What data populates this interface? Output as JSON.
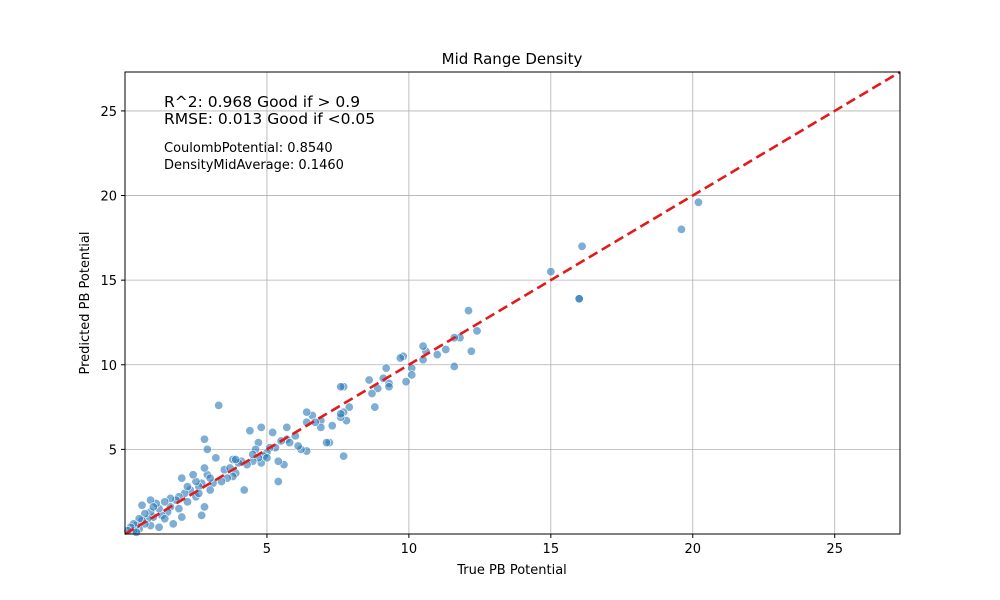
{
  "chart_data": {
    "type": "scatter",
    "title": "Mid Range Density",
    "xlabel": "True PB Potential",
    "ylabel": "Predicted PB Potential",
    "xlim": [
      0,
      27.3
    ],
    "ylim": [
      0,
      27.3
    ],
    "xticks": [
      5,
      10,
      15,
      20,
      25
    ],
    "yticks": [
      5,
      10,
      15,
      20,
      25
    ],
    "grid": true,
    "point_color": "#2878b5",
    "reference_line": {
      "from": [
        0,
        0
      ],
      "to": [
        27.3,
        27.3
      ],
      "color": "#e31a1c",
      "style": "dashed"
    },
    "annotations": [
      "R^2: 0.968 Good if > 0.9",
      "RMSE: 0.013 Good if <0.05",
      "CoulombPotential: 0.8540",
      "DensityMidAverage: 0.1460"
    ],
    "points": [
      [
        20.2,
        19.6
      ],
      [
        19.6,
        18.0
      ],
      [
        16.1,
        17.0
      ],
      [
        16.0,
        13.9
      ],
      [
        16.0,
        13.9
      ],
      [
        15.0,
        15.5
      ],
      [
        12.4,
        12.0
      ],
      [
        12.1,
        13.2
      ],
      [
        12.2,
        10.8
      ],
      [
        11.8,
        11.6
      ],
      [
        11.6,
        11.6
      ],
      [
        11.6,
        9.9
      ],
      [
        11.3,
        10.9
      ],
      [
        11.0,
        10.6
      ],
      [
        10.6,
        10.8
      ],
      [
        10.5,
        11.1
      ],
      [
        10.5,
        10.3
      ],
      [
        10.1,
        9.8
      ],
      [
        10.1,
        9.4
      ],
      [
        9.9,
        9.0
      ],
      [
        9.8,
        10.5
      ],
      [
        9.7,
        10.4
      ],
      [
        9.3,
        8.9
      ],
      [
        9.3,
        8.7
      ],
      [
        9.2,
        9.8
      ],
      [
        9.1,
        9.2
      ],
      [
        8.9,
        8.6
      ],
      [
        8.8,
        7.5
      ],
      [
        8.7,
        8.3
      ],
      [
        8.6,
        9.1
      ],
      [
        7.9,
        7.5
      ],
      [
        7.8,
        6.7
      ],
      [
        7.7,
        7.2
      ],
      [
        7.7,
        4.6
      ],
      [
        7.7,
        8.7
      ],
      [
        7.6,
        8.7
      ],
      [
        7.6,
        6.9
      ],
      [
        7.6,
        7.1
      ],
      [
        7.3,
        6.4
      ],
      [
        7.2,
        5.4
      ],
      [
        7.1,
        5.4
      ],
      [
        6.9,
        6.7
      ],
      [
        6.9,
        6.3
      ],
      [
        6.6,
        7.0
      ],
      [
        6.4,
        7.2
      ],
      [
        6.4,
        6.6
      ],
      [
        6.4,
        4.9
      ],
      [
        6.2,
        5.0
      ],
      [
        6.1,
        5.2
      ],
      [
        6.0,
        5.8
      ],
      [
        5.7,
        6.3
      ],
      [
        5.7,
        5.6
      ],
      [
        5.6,
        4.1
      ],
      [
        5.5,
        5.5
      ],
      [
        5.4,
        3.1
      ],
      [
        5.3,
        5.1
      ],
      [
        5.2,
        6.0
      ],
      [
        5.1,
        5.1
      ],
      [
        5.0,
        4.8
      ],
      [
        4.9,
        4.6
      ],
      [
        4.8,
        6.3
      ],
      [
        4.8,
        4.2
      ],
      [
        4.7,
        5.4
      ],
      [
        4.7,
        4.5
      ],
      [
        4.6,
        5.0
      ],
      [
        4.5,
        4.3
      ],
      [
        4.4,
        6.1
      ],
      [
        4.3,
        4.1
      ],
      [
        4.2,
        2.6
      ],
      [
        4.1,
        4.3
      ],
      [
        4.0,
        4.2
      ],
      [
        3.9,
        3.6
      ],
      [
        3.8,
        4.4
      ],
      [
        3.8,
        3.4
      ],
      [
        3.6,
        3.3
      ],
      [
        3.5,
        3.8
      ],
      [
        3.4,
        3.1
      ],
      [
        3.3,
        7.6
      ],
      [
        3.2,
        4.5
      ],
      [
        3.1,
        3.0
      ],
      [
        3.0,
        2.6
      ],
      [
        2.9,
        5.0
      ],
      [
        2.9,
        3.5
      ],
      [
        2.8,
        5.6
      ],
      [
        2.8,
        3.9
      ],
      [
        2.8,
        1.6
      ],
      [
        2.7,
        1.1
      ],
      [
        2.7,
        3.0
      ],
      [
        2.6,
        2.8
      ],
      [
        2.5,
        3.1
      ],
      [
        2.5,
        2.2
      ],
      [
        2.4,
        3.5
      ],
      [
        2.3,
        2.6
      ],
      [
        2.2,
        1.9
      ],
      [
        2.1,
        2.4
      ],
      [
        2.0,
        3.3
      ],
      [
        2.0,
        1.0
      ],
      [
        1.9,
        2.2
      ],
      [
        1.8,
        2.0
      ],
      [
        1.7,
        0.6
      ],
      [
        1.6,
        1.6
      ],
      [
        1.6,
        2.1
      ],
      [
        1.5,
        1.3
      ],
      [
        1.4,
        1.9
      ],
      [
        1.3,
        1.1
      ],
      [
        1.2,
        1.5
      ],
      [
        1.1,
        1.8
      ],
      [
        1.0,
        1.0
      ],
      [
        0.9,
        1.3
      ],
      [
        0.9,
        0.5
      ],
      [
        0.8,
        0.9
      ],
      [
        0.7,
        1.2
      ],
      [
        0.7,
        0.6
      ],
      [
        0.6,
        0.8
      ],
      [
        0.5,
        0.3
      ],
      [
        0.5,
        0.9
      ],
      [
        0.4,
        0.5
      ],
      [
        0.3,
        0.6
      ],
      [
        0.3,
        0.2
      ],
      [
        0.2,
        0.4
      ],
      [
        0.1,
        0.2
      ],
      [
        0.6,
        1.7
      ],
      [
        0.9,
        2.0
      ],
      [
        1.2,
        0.4
      ],
      [
        2.2,
        2.8
      ],
      [
        3.7,
        3.9
      ],
      [
        3.0,
        3.3
      ],
      [
        2.6,
        2.4
      ],
      [
        1.9,
        1.5
      ],
      [
        1.4,
        0.9
      ],
      [
        0.4,
        0.1
      ],
      [
        1.0,
        1.6
      ],
      [
        3.9,
        4.4
      ],
      [
        4.5,
        4.7
      ],
      [
        5.0,
        4.5
      ],
      [
        5.8,
        5.4
      ],
      [
        6.7,
        6.6
      ],
      [
        5.4,
        4.3
      ]
    ]
  }
}
